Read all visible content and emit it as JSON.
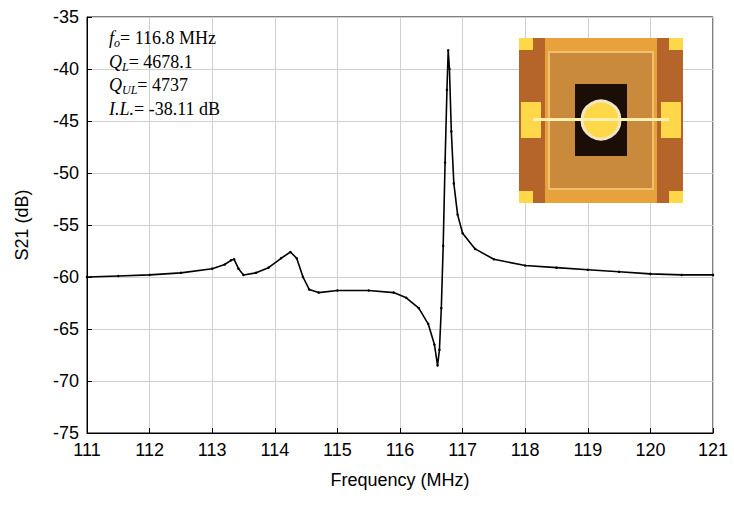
{
  "chart_data": {
    "type": "line",
    "xlabel": "Frequency (MHz)",
    "ylabel": "S21 (dB)",
    "color": "#000000",
    "marker": "circle",
    "line_style": "solid",
    "grid": true,
    "xlim": [
      111,
      121
    ],
    "ylim": [
      -75,
      -35
    ],
    "xticks": [
      111,
      112,
      113,
      114,
      115,
      116,
      117,
      118,
      119,
      120,
      121
    ],
    "yticks": [
      -75,
      -70,
      -65,
      -60,
      -55,
      -50,
      -45,
      -40,
      -35
    ],
    "x": [
      111,
      111.5,
      112,
      112.5,
      113,
      113.2,
      113.3,
      113.35,
      113.42,
      113.5,
      113.7,
      113.9,
      114.1,
      114.25,
      114.35,
      114.45,
      114.55,
      114.7,
      115,
      115.5,
      115.9,
      116.1,
      116.3,
      116.45,
      116.55,
      116.6,
      116.63,
      116.66,
      116.69,
      116.72,
      116.75,
      116.77,
      116.79,
      116.82,
      116.86,
      116.92,
      117.0,
      117.2,
      117.5,
      118,
      118.5,
      119,
      119.5,
      120,
      120.5,
      121
    ],
    "values": [
      -60.0,
      -59.9,
      -59.8,
      -59.6,
      -59.2,
      -58.8,
      -58.4,
      -58.3,
      -59.2,
      -59.8,
      -59.6,
      -59.1,
      -58.2,
      -57.6,
      -58.2,
      -60.0,
      -61.2,
      -61.5,
      -61.3,
      -61.3,
      -61.5,
      -62.0,
      -63.0,
      -64.5,
      -66.5,
      -68.5,
      -67.0,
      -63.0,
      -57.0,
      -49.0,
      -42.0,
      -38.2,
      -40.0,
      -46.0,
      -51.0,
      -54.0,
      -55.8,
      -57.3,
      -58.3,
      -58.9,
      -59.1,
      -59.3,
      -59.5,
      -59.7,
      -59.8,
      -59.8
    ],
    "annotations": [
      {
        "text": "f",
        "subscript": "o",
        "rest": "= 116.8 MHz"
      },
      {
        "text": "Q",
        "subscript": "L",
        "rest": "= 4678.1"
      },
      {
        "text": "Q",
        "subscript": "UL",
        "rest": "= 4737"
      },
      {
        "text": "I.L.",
        "subscript": "",
        "rest": "= -38.11 dB"
      }
    ]
  }
}
